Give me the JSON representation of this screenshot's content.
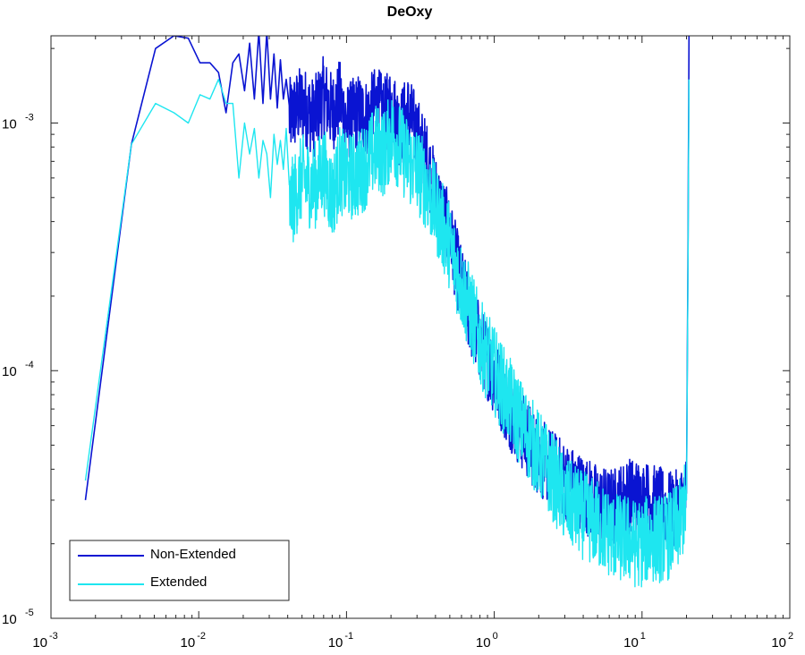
{
  "chart_data": {
    "type": "line",
    "title": "DeOxy",
    "xlabel": "",
    "ylabel": "",
    "x_scale": "log",
    "y_scale": "log",
    "xlim": [
      0.001,
      100
    ],
    "ylim": [
      1e-05,
      0.00225
    ],
    "x_ticks": [
      {
        "base": "10",
        "exp": "-3",
        "value": 0.001
      },
      {
        "base": "10",
        "exp": "-2",
        "value": 0.01
      },
      {
        "base": "10",
        "exp": "-1",
        "value": 0.1
      },
      {
        "base": "10",
        "exp": "0",
        "value": 1
      },
      {
        "base": "10",
        "exp": "1",
        "value": 10
      },
      {
        "base": "10",
        "exp": "2",
        "value": 100
      }
    ],
    "y_ticks": [
      {
        "base": "10",
        "exp": "-5",
        "value": 1e-05
      },
      {
        "base": "10",
        "exp": "-4",
        "value": 0.0001
      },
      {
        "base": "10",
        "exp": "-3",
        "value": 0.001
      }
    ],
    "grid": false,
    "legend_position": "bottom-left",
    "series": [
      {
        "name": "Non-Extended",
        "color": "#0a14d2",
        "x": [
          0.00171,
          0.0035,
          0.0051,
          0.0068,
          0.0085,
          0.0102,
          0.0119,
          0.0136,
          0.0153,
          0.017,
          0.0187,
          0.0204,
          0.0221,
          0.0238,
          0.0255,
          0.0272,
          0.0289,
          0.0306,
          0.0323,
          0.034,
          0.0357,
          0.0374,
          0.0391,
          0.041,
          0.05,
          0.06,
          0.07,
          0.08,
          0.09,
          0.1,
          0.12,
          0.14,
          0.16,
          0.18,
          0.2,
          0.23,
          0.26,
          0.3,
          0.35,
          0.4,
          0.5,
          0.6,
          0.7,
          0.8,
          1.0,
          1.2,
          1.5,
          2.0,
          2.5,
          3.0,
          4.0,
          5.0,
          6.0,
          7.0,
          8.0,
          9.0,
          10.0,
          11.0,
          12.0,
          14.0,
          16.0,
          18.0,
          20.0,
          20.5,
          20.8
        ],
        "y": [
          3e-05,
          0.00082,
          0.002,
          0.00225,
          0.0022,
          0.00175,
          0.00175,
          0.0016,
          0.0011,
          0.00175,
          0.0019,
          0.00135,
          0.0021,
          0.00125,
          0.00235,
          0.0012,
          0.00235,
          0.00125,
          0.0019,
          0.00115,
          0.0018,
          0.00125,
          0.0015,
          0.00105,
          0.0012,
          0.00105,
          0.0013,
          0.0011,
          0.00125,
          0.001,
          0.0011,
          0.00105,
          0.0012,
          0.00105,
          0.0012,
          0.00095,
          0.0011,
          0.0009,
          0.0007,
          0.00052,
          0.00035,
          0.00022,
          0.00016,
          0.00013,
          9.5e-05,
          7.4e-05,
          5.8e-05,
          4.5e-05,
          4e-05,
          3.6e-05,
          3.2e-05,
          2.9e-05,
          2.8e-05,
          2.9e-05,
          3.1e-05,
          3.1e-05,
          3e-05,
          3e-05,
          2.9e-05,
          2.8e-05,
          2.7e-05,
          2.8e-05,
          3.2e-05,
          0.00035,
          0.00225
        ]
      },
      {
        "name": "Extended",
        "color": "#1ee6f0",
        "x": [
          0.00171,
          0.0035,
          0.0051,
          0.0068,
          0.0085,
          0.0102,
          0.0119,
          0.0136,
          0.0153,
          0.017,
          0.0187,
          0.0204,
          0.0221,
          0.0238,
          0.0255,
          0.0272,
          0.0289,
          0.0306,
          0.0323,
          0.034,
          0.0357,
          0.0374,
          0.0391,
          0.041,
          0.05,
          0.06,
          0.07,
          0.08,
          0.09,
          0.1,
          0.12,
          0.14,
          0.16,
          0.18,
          0.2,
          0.23,
          0.26,
          0.3,
          0.35,
          0.4,
          0.5,
          0.6,
          0.7,
          0.8,
          1.0,
          1.2,
          1.5,
          2.0,
          2.5,
          3.0,
          4.0,
          5.0,
          6.0,
          7.0,
          8.0,
          9.0,
          10.0,
          11.0,
          12.0,
          14.0,
          16.0,
          18.0,
          20.0,
          20.5,
          20.8
        ],
        "y": [
          3.6e-05,
          0.00082,
          0.0012,
          0.0011,
          0.001,
          0.0013,
          0.00125,
          0.0015,
          0.0012,
          0.0012,
          0.0006,
          0.001,
          0.00075,
          0.00095,
          0.0006,
          0.00085,
          0.00075,
          0.0005,
          0.0009,
          0.00068,
          0.00085,
          0.00065,
          0.00095,
          0.00045,
          0.0006,
          0.00055,
          0.00065,
          0.0005,
          0.00065,
          0.0006,
          0.00062,
          0.0007,
          0.0008,
          0.00075,
          0.0009,
          0.0008,
          0.0007,
          0.00065,
          0.00055,
          0.00045,
          0.00032,
          0.00022,
          0.00017,
          0.00013,
          0.0001,
          8e-05,
          6.2e-05,
          4.6e-05,
          3.7e-05,
          3e-05,
          2.6e-05,
          2.4e-05,
          2.2e-05,
          2.1e-05,
          2.1e-05,
          2e-05,
          2e-05,
          2.1e-05,
          2.1e-05,
          2.1e-05,
          2.2e-05,
          2.4e-05,
          3e-05,
          0.0003,
          0.0015
        ]
      }
    ]
  }
}
